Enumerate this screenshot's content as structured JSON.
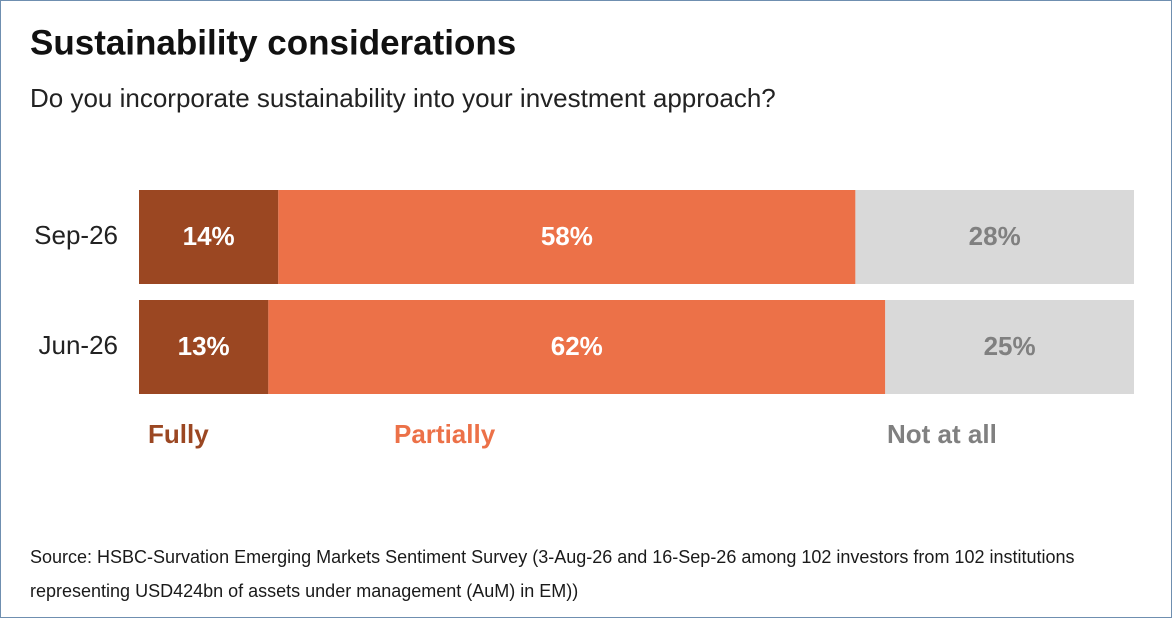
{
  "chart_data": {
    "type": "stacked-bar-horizontal",
    "title": "Sustainability considerations",
    "subtitle": "Do you incorporate sustainability into your investment approach?",
    "categories": [
      "Sep-26",
      "Jun-26"
    ],
    "series": [
      {
        "name": "Fully",
        "color": "#9b4722",
        "label_color": "#ffffff",
        "legend_color": "#9b4722",
        "values": [
          14,
          13
        ],
        "value_labels": [
          "14%",
          "13%"
        ]
      },
      {
        "name": "Partially",
        "color": "#ec7148",
        "label_color": "#ffffff",
        "legend_color": "#ec7148",
        "values": [
          58,
          62
        ],
        "value_labels": [
          "58%",
          "62%"
        ]
      },
      {
        "name": "Not at all",
        "color": "#d9d9d9",
        "label_color": "#808080",
        "legend_color": "#808080",
        "values": [
          28,
          25
        ],
        "value_labels": [
          "28%",
          "25%"
        ]
      }
    ],
    "xlim": [
      0,
      100
    ],
    "source": "Source: HSBC-Survation Emerging Markets Sentiment Survey (3-Aug-26 and 16-Sep-26 among 102 investors from 102 institutions representing USD424bn of assets under management (AuM) in EM))"
  }
}
